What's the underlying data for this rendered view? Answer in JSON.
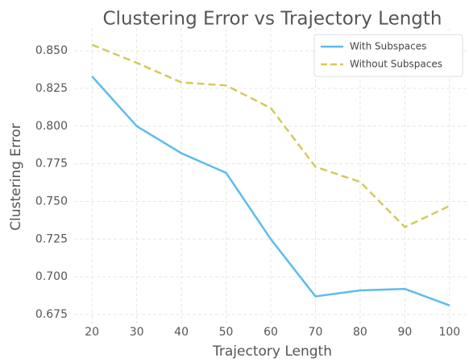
{
  "chart_data": {
    "type": "line",
    "title": "Clustering Error vs Trajectory Length",
    "xlabel": "Trajectory Length",
    "ylabel": "Clustering Error",
    "x": [
      20,
      30,
      40,
      50,
      60,
      70,
      80,
      90,
      100
    ],
    "series": [
      {
        "name": "With Subspaces",
        "color": "#5bbdea",
        "dash": "solid",
        "values": [
          0.833,
          0.8,
          0.782,
          0.769,
          0.725,
          0.687,
          0.691,
          0.692,
          0.681
        ]
      },
      {
        "name": "Without Subspaces",
        "color": "#d4c95a",
        "dash": "dashed",
        "values": [
          0.854,
          0.842,
          0.829,
          0.827,
          0.812,
          0.773,
          0.763,
          0.733,
          0.747
        ]
      }
    ],
    "xlim": [
      16,
      104
    ],
    "ylim": [
      0.6675,
      0.865
    ],
    "xticks": [
      20,
      30,
      40,
      50,
      60,
      70,
      80,
      90,
      100
    ],
    "yticks": [
      0.675,
      {
        "value": 0.7,
        "label": "0.700"
      },
      0.725,
      {
        "value": 0.75,
        "label": "0.750"
      },
      0.775,
      {
        "value": 0.8,
        "label": "0.800"
      },
      0.825,
      {
        "value": 0.85,
        "label": "0.850"
      }
    ],
    "grid": true,
    "legend": "upper right"
  }
}
